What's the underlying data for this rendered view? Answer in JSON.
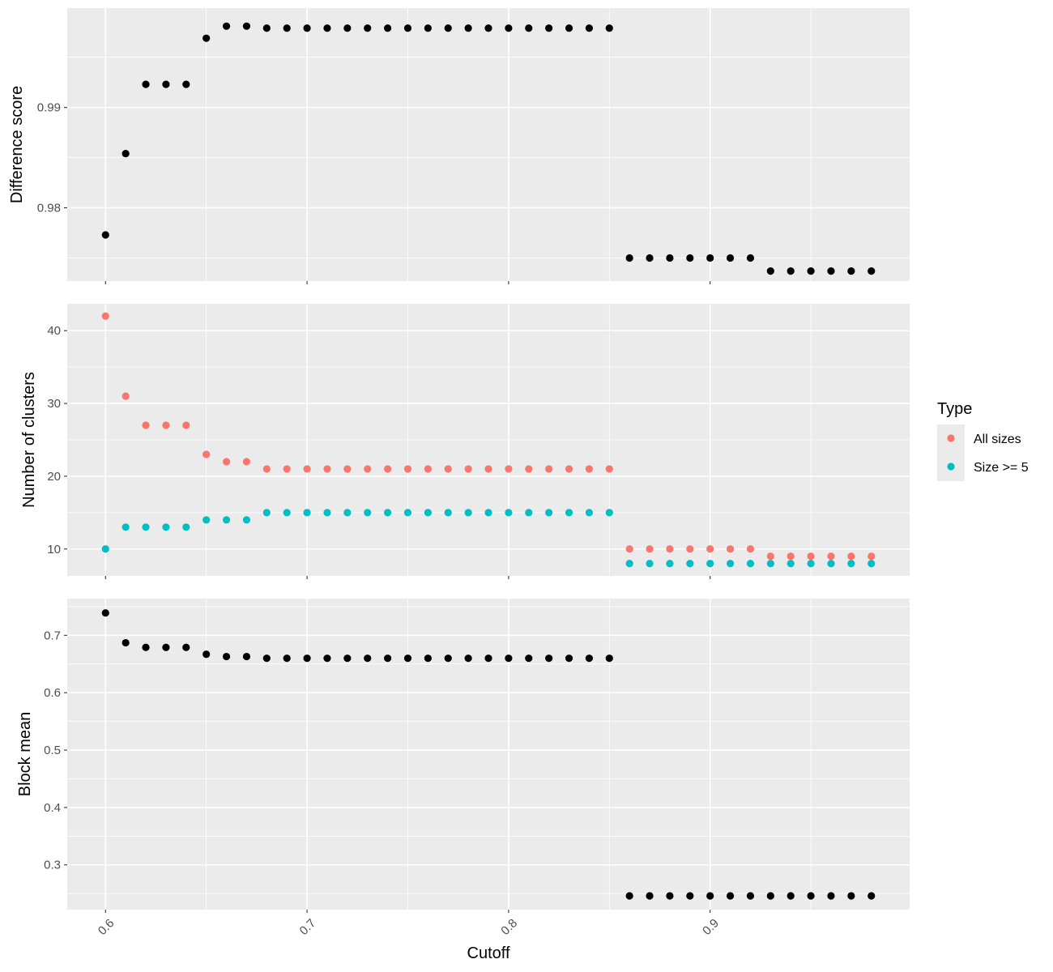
{
  "chart_data": [
    {
      "type": "scatter",
      "ylabel": "Difference score",
      "xlim": [
        0.581,
        0.999
      ],
      "ylim": [
        0.9727,
        0.9999
      ],
      "yticks": [
        0.98,
        0.99
      ],
      "ytick_labels": [
        "0.98",
        "0.99"
      ],
      "grid": true,
      "series": [
        {
          "color": "#000000",
          "x": [
            0.6,
            0.61,
            0.62,
            0.63,
            0.64,
            0.65,
            0.66,
            0.67,
            0.68,
            0.69,
            0.7,
            0.71,
            0.72,
            0.73,
            0.74,
            0.75,
            0.76,
            0.77,
            0.78,
            0.79,
            0.8,
            0.81,
            0.82,
            0.83,
            0.84,
            0.85,
            0.86,
            0.87,
            0.88,
            0.89,
            0.9,
            0.91,
            0.92,
            0.93,
            0.94,
            0.95,
            0.96,
            0.97,
            0.98
          ],
          "y": [
            0.9773,
            0.9854,
            0.9923,
            0.9923,
            0.9923,
            0.9969,
            0.9981,
            0.9981,
            0.9979,
            0.9979,
            0.9979,
            0.9979,
            0.9979,
            0.9979,
            0.9979,
            0.9979,
            0.9979,
            0.9979,
            0.9979,
            0.9979,
            0.9979,
            0.9979,
            0.9979,
            0.9979,
            0.9979,
            0.9979,
            0.975,
            0.975,
            0.975,
            0.975,
            0.975,
            0.975,
            0.975,
            0.9737,
            0.9737,
            0.9737,
            0.9737,
            0.9737,
            0.9737
          ]
        }
      ]
    },
    {
      "type": "scatter",
      "ylabel": "Number of clusters",
      "xlim": [
        0.581,
        0.999
      ],
      "ylim": [
        6.3,
        43.7
      ],
      "yticks": [
        10,
        20,
        30,
        40
      ],
      "ytick_labels": [
        "10",
        "20",
        "30",
        "40"
      ],
      "grid": true,
      "legend": {
        "title": "Type",
        "position": "right",
        "items": [
          {
            "label": "All sizes",
            "color": "#F8766D"
          },
          {
            "label": "Size >= 5",
            "color": "#00BFC4"
          }
        ]
      },
      "series": [
        {
          "name": "All sizes",
          "color": "#F8766D",
          "x": [
            0.6,
            0.61,
            0.62,
            0.63,
            0.64,
            0.65,
            0.66,
            0.67,
            0.68,
            0.69,
            0.7,
            0.71,
            0.72,
            0.73,
            0.74,
            0.75,
            0.76,
            0.77,
            0.78,
            0.79,
            0.8,
            0.81,
            0.82,
            0.83,
            0.84,
            0.85,
            0.86,
            0.87,
            0.88,
            0.89,
            0.9,
            0.91,
            0.92,
            0.93,
            0.94,
            0.95,
            0.96,
            0.97,
            0.98
          ],
          "y": [
            42,
            31,
            27,
            27,
            27,
            23,
            22,
            22,
            21,
            21,
            21,
            21,
            21,
            21,
            21,
            21,
            21,
            21,
            21,
            21,
            21,
            21,
            21,
            21,
            21,
            21,
            10,
            10,
            10,
            10,
            10,
            10,
            10,
            9,
            9,
            9,
            9,
            9,
            9
          ]
        },
        {
          "name": "Size >= 5",
          "color": "#00BFC4",
          "x": [
            0.6,
            0.61,
            0.62,
            0.63,
            0.64,
            0.65,
            0.66,
            0.67,
            0.68,
            0.69,
            0.7,
            0.71,
            0.72,
            0.73,
            0.74,
            0.75,
            0.76,
            0.77,
            0.78,
            0.79,
            0.8,
            0.81,
            0.82,
            0.83,
            0.84,
            0.85,
            0.86,
            0.87,
            0.88,
            0.89,
            0.9,
            0.91,
            0.92,
            0.93,
            0.94,
            0.95,
            0.96,
            0.97,
            0.98
          ],
          "y": [
            10,
            13,
            13,
            13,
            13,
            14,
            14,
            14,
            15,
            15,
            15,
            15,
            15,
            15,
            15,
            15,
            15,
            15,
            15,
            15,
            15,
            15,
            15,
            15,
            15,
            15,
            8,
            8,
            8,
            8,
            8,
            8,
            8,
            8,
            8,
            8,
            8,
            8,
            8
          ]
        }
      ]
    },
    {
      "type": "scatter",
      "ylabel": "Block mean",
      "xlabel": "Cutoff",
      "xlim": [
        0.581,
        0.999
      ],
      "ylim": [
        0.222,
        0.764
      ],
      "yticks": [
        0.3,
        0.4,
        0.5,
        0.6,
        0.7
      ],
      "ytick_labels": [
        "0.3",
        "0.4",
        "0.5",
        "0.6",
        "0.7"
      ],
      "grid": true,
      "series": [
        {
          "color": "#000000",
          "x": [
            0.6,
            0.61,
            0.62,
            0.63,
            0.64,
            0.65,
            0.66,
            0.67,
            0.68,
            0.69,
            0.7,
            0.71,
            0.72,
            0.73,
            0.74,
            0.75,
            0.76,
            0.77,
            0.78,
            0.79,
            0.8,
            0.81,
            0.82,
            0.83,
            0.84,
            0.85,
            0.86,
            0.87,
            0.88,
            0.89,
            0.9,
            0.91,
            0.92,
            0.93,
            0.94,
            0.95,
            0.96,
            0.97,
            0.98
          ],
          "y": [
            0.739,
            0.687,
            0.679,
            0.679,
            0.679,
            0.667,
            0.663,
            0.663,
            0.66,
            0.66,
            0.66,
            0.66,
            0.66,
            0.66,
            0.66,
            0.66,
            0.66,
            0.66,
            0.66,
            0.66,
            0.66,
            0.66,
            0.66,
            0.66,
            0.66,
            0.66,
            0.246,
            0.246,
            0.246,
            0.246,
            0.246,
            0.246,
            0.246,
            0.246,
            0.246,
            0.246,
            0.246,
            0.246,
            0.246
          ]
        }
      ]
    }
  ],
  "shared_x": {
    "ticks": [
      0.6,
      0.7,
      0.8,
      0.9
    ],
    "tick_labels": [
      "0.6",
      "0.7",
      "0.8",
      "0.9"
    ]
  }
}
